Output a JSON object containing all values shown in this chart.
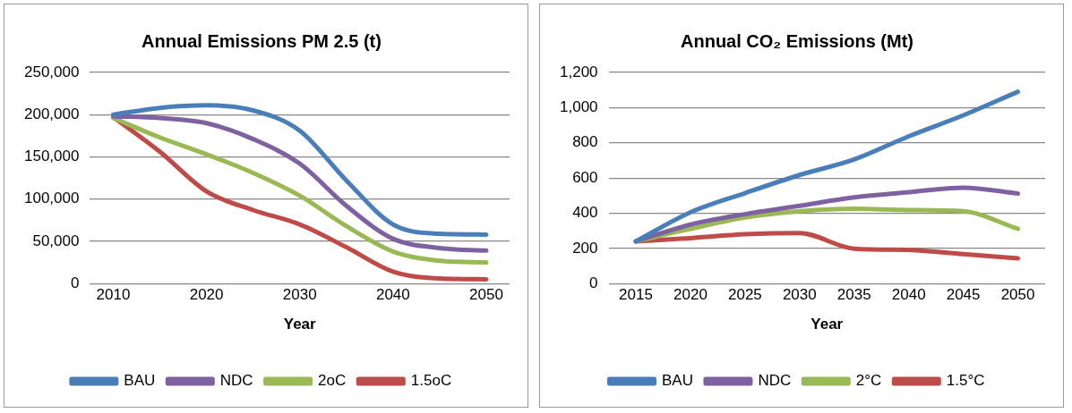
{
  "chart_data": [
    {
      "type": "line",
      "title": "Annual Emissions PM 2.5 (t)",
      "xlabel": "Year",
      "categories": [
        "2010",
        null,
        "2020",
        null,
        "2030",
        null,
        "2040",
        null,
        "2050"
      ],
      "series": [
        {
          "name": "BAU",
          "color": "#4a7ebb",
          "values": [
            200000,
            208000,
            211000,
            205000,
            181000,
            122000,
            70000,
            59000,
            58000
          ]
        },
        {
          "name": "NDC",
          "color": "#7e61a0",
          "values": [
            198000,
            196000,
            190000,
            171000,
            142000,
            92000,
            53000,
            42000,
            39000
          ]
        },
        {
          "name": "2oC",
          "color": "#98b954",
          "values": [
            196000,
            173000,
            153000,
            131000,
            104000,
            68000,
            38000,
            27000,
            25000
          ]
        },
        {
          "name": "1.5oC",
          "color": "#be4b48",
          "values": [
            197000,
            156000,
            109000,
            87000,
            70000,
            43000,
            14000,
            6000,
            5000
          ]
        }
      ],
      "ylim": [
        0,
        250000
      ],
      "yticks": [
        0,
        {
          "value": 50000,
          "label": "50,000"
        },
        {
          "value": 100000,
          "label": "100,000"
        },
        {
          "value": 150000,
          "label": "150,000"
        },
        {
          "value": 200000,
          "label": "200,000"
        },
        {
          "value": 250000,
          "label": "250,000"
        }
      ],
      "grid": "y",
      "legend": "bottom",
      "marker": "none",
      "line_style": "solid"
    },
    {
      "type": "line",
      "title": "Annual CO₂ Emissions (Mt)",
      "xlabel": "Year",
      "categories": [
        "2015",
        "2020",
        "2025",
        "2030",
        "2035",
        "2040",
        "2045",
        "2050"
      ],
      "series": [
        {
          "name": "BAU",
          "color": "#4a7ebb",
          "values": [
            240,
            405,
            514,
            617,
            705,
            837,
            956,
            1090
          ]
        },
        {
          "name": "NDC",
          "color": "#7e61a0",
          "values": [
            240,
            335,
            394,
            442,
            490,
            519,
            545,
            512
          ]
        },
        {
          "name": "2°C",
          "color": "#98b954",
          "values": [
            240,
            311,
            375,
            411,
            425,
            418,
            411,
            311
          ]
        },
        {
          "name": "1.5°C",
          "color": "#be4b48",
          "values": [
            240,
            258,
            280,
            287,
            198,
            191,
            167,
            143
          ]
        }
      ],
      "ylim": [
        0,
        1200
      ],
      "yticks": [
        0,
        200,
        400,
        600,
        800,
        {
          "value": 1000,
          "label": "1,000"
        },
        {
          "value": 1200,
          "label": "1,200"
        }
      ],
      "grid": "y",
      "legend": "bottom",
      "marker": "none",
      "line_style": "solid"
    }
  ]
}
